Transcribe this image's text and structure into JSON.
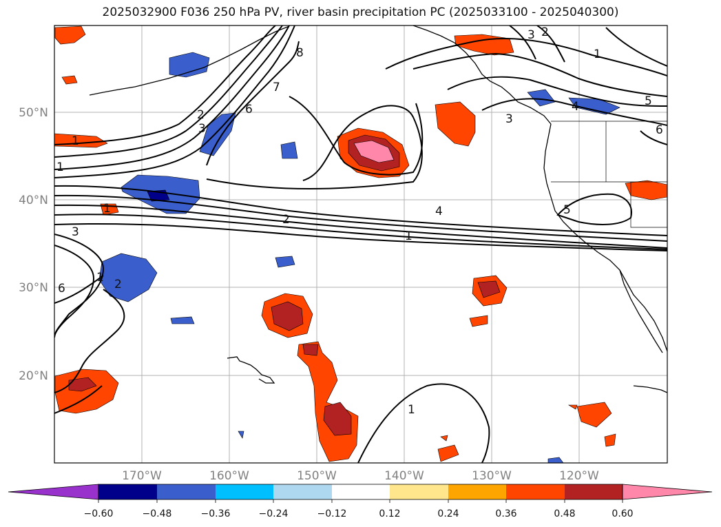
{
  "title": "2025032900 F036 250 hPa PV, river basin precipitation PC (2025033100 - 2025040300)",
  "map": {
    "lon_range": [
      -180,
      -110
    ],
    "lat_range": [
      10,
      60
    ],
    "lat_labels": [
      "50°N",
      "40°N",
      "30°N",
      "20°N"
    ],
    "lon_labels": [
      "170°W",
      "160°W",
      "150°W",
      "140°W",
      "130°W",
      "120°W"
    ],
    "grid": true
  },
  "contour_labels": [
    "1",
    "2",
    "3",
    "4",
    "5",
    "6",
    "7",
    "8",
    "1",
    "2",
    "3",
    "1",
    "6",
    "3",
    "5",
    "1",
    "2",
    "4",
    "1",
    "3",
    "2",
    "6",
    "1",
    "1"
  ],
  "colorbar": {
    "ticks": [
      "−0.60",
      "−0.48",
      "−0.36",
      "−0.24",
      "−0.12",
      "0.12",
      "0.24",
      "0.36",
      "0.48",
      "0.60"
    ],
    "colors": [
      "#9932cc",
      "#00008b",
      "#3a5fcd",
      "#00bfff",
      "#add8f0",
      "#ffffff",
      "#ffe68c",
      "#ffa500",
      "#ff4500",
      "#b22222",
      "#ff88aa"
    ],
    "extend": "both"
  }
}
